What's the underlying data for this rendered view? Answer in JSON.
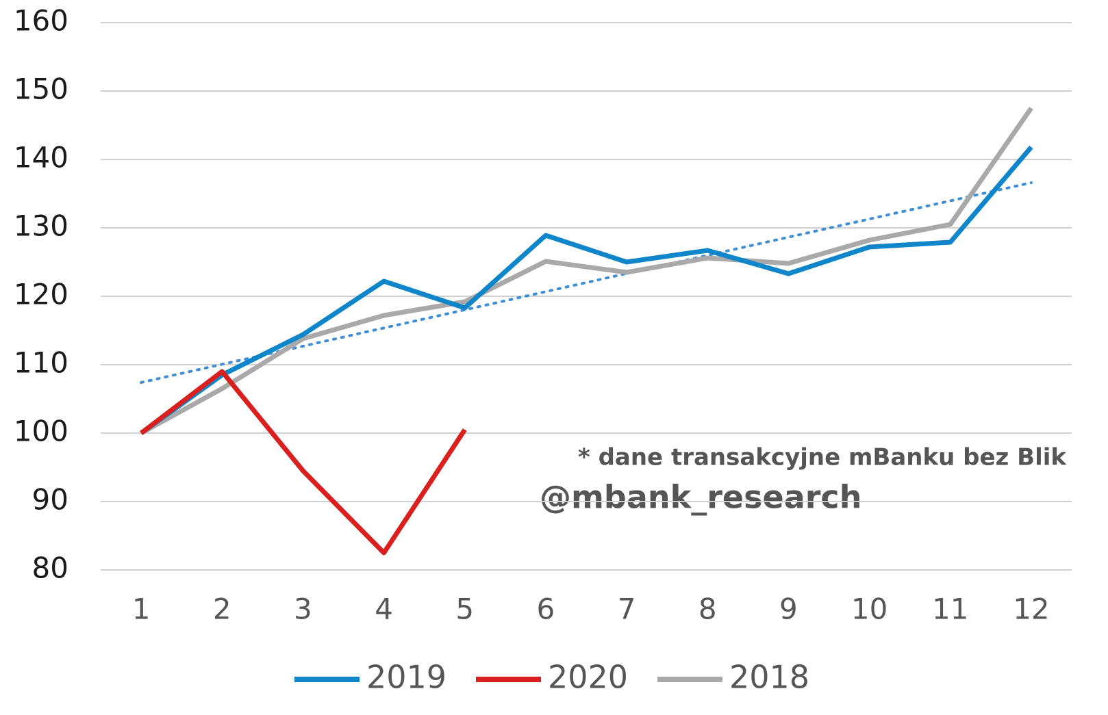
{
  "chart_data": {
    "type": "line",
    "x": [
      1,
      2,
      3,
      4,
      5,
      6,
      7,
      8,
      9,
      10,
      11,
      12
    ],
    "xlim": [
      0.5,
      12.5
    ],
    "xticks": [
      1,
      2,
      3,
      4,
      5,
      6,
      7,
      8,
      9,
      10,
      11,
      12
    ],
    "ylim": [
      80,
      160
    ],
    "yticks": [
      80,
      90,
      100,
      110,
      120,
      130,
      140,
      150,
      160
    ],
    "grid": true,
    "legend": "bottom",
    "series": [
      {
        "name": "2019",
        "color": "#0f86c9",
        "values": [
          100,
          108.5,
          114.4,
          122.2,
          118.3,
          128.9,
          125,
          126.7,
          123.3,
          127.2,
          127.9,
          141.8
        ]
      },
      {
        "name": "2020",
        "color": "#d9201f",
        "values": [
          100,
          109,
          94.5,
          82.5,
          100.5,
          null,
          null,
          null,
          null,
          null,
          null,
          null
        ]
      },
      {
        "name": "2018",
        "color": "#a9a9a9",
        "values": [
          100,
          106.5,
          113.8,
          117.2,
          119.2,
          125.1,
          123.5,
          125.6,
          124.8,
          128.2,
          130.5,
          147.5
        ]
      }
    ],
    "trendline": {
      "x": [
        1,
        12
      ],
      "values": [
        107.4,
        136.6
      ],
      "color": "#3f8fd6",
      "style": "dotted"
    },
    "annotations": [
      "* dane transakcyjne mBanku bez Blik",
      "@mbank_research"
    ]
  }
}
